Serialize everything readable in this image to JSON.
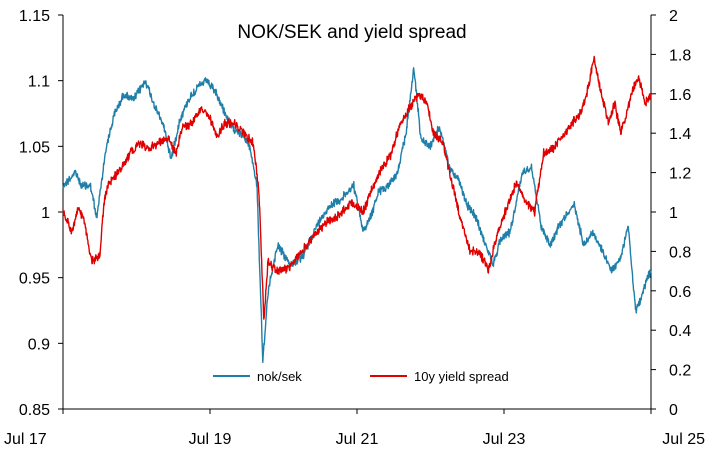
{
  "chart_data": {
    "type": "line",
    "title": "NOK/SEK and yield spread",
    "x_ticks": [
      "Jul 17",
      "Jul 19",
      "Jul 21",
      "Jul 23",
      "Jul 25"
    ],
    "x_range": [
      "2017-07-01",
      "2025-07-01"
    ],
    "y_left": {
      "ylim": [
        0.85,
        1.15
      ],
      "ticks": [
        "0.85",
        "0.9",
        "0.95",
        "1",
        "1.05",
        "1.1",
        "1.15"
      ]
    },
    "y_right": {
      "ylim": [
        0,
        2
      ],
      "ticks": [
        "0",
        "0.2",
        "0.4",
        "0.6",
        "0.8",
        "1",
        "1.2",
        "1.4",
        "1.6",
        "1.8",
        "2"
      ]
    },
    "grid": false,
    "legend_position": "bottom-center",
    "series": [
      {
        "name": "nok/sek",
        "axis": "left",
        "color": "#1f7fa8",
        "points": [
          [
            "2017-07-01",
            1.02
          ],
          [
            "2017-09-01",
            1.03
          ],
          [
            "2017-10-01",
            1.02
          ],
          [
            "2017-11-15",
            1.02
          ],
          [
            "2017-12-15",
            0.995
          ],
          [
            "2018-02-01",
            1.05
          ],
          [
            "2018-03-15",
            1.075
          ],
          [
            "2018-05-01",
            1.09
          ],
          [
            "2018-06-15",
            1.085
          ],
          [
            "2018-08-15",
            1.1
          ],
          [
            "2018-10-01",
            1.08
          ],
          [
            "2018-11-15",
            1.065
          ],
          [
            "2018-12-20",
            1.04
          ],
          [
            "2019-02-01",
            1.07
          ],
          [
            "2019-03-15",
            1.085
          ],
          [
            "2019-05-01",
            1.095
          ],
          [
            "2019-06-15",
            1.1
          ],
          [
            "2019-08-01",
            1.09
          ],
          [
            "2019-09-15",
            1.075
          ],
          [
            "2019-10-15",
            1.065
          ],
          [
            "2019-12-01",
            1.06
          ],
          [
            "2020-01-15",
            1.05
          ],
          [
            "2020-02-20",
            1.02
          ],
          [
            "2020-03-20",
            0.885
          ],
          [
            "2020-04-15",
            0.94
          ],
          [
            "2020-06-01",
            0.975
          ],
          [
            "2020-08-01",
            0.96
          ],
          [
            "2020-10-01",
            0.965
          ],
          [
            "2020-12-15",
            0.99
          ],
          [
            "2021-02-15",
            1.005
          ],
          [
            "2021-04-15",
            1.01
          ],
          [
            "2021-06-15",
            1.02
          ],
          [
            "2021-08-01",
            0.985
          ],
          [
            "2021-09-15",
            1.0
          ],
          [
            "2021-10-15",
            1.015
          ],
          [
            "2021-12-01",
            1.02
          ],
          [
            "2022-01-20",
            1.03
          ],
          [
            "2022-03-01",
            1.06
          ],
          [
            "2022-04-10",
            1.11
          ],
          [
            "2022-05-15",
            1.055
          ],
          [
            "2022-07-01",
            1.05
          ],
          [
            "2022-08-15",
            1.065
          ],
          [
            "2022-10-01",
            1.035
          ],
          [
            "2022-11-15",
            1.025
          ],
          [
            "2023-01-01",
            1.005
          ],
          [
            "2023-02-15",
            0.995
          ],
          [
            "2023-04-01",
            0.975
          ],
          [
            "2023-05-10",
            0.96
          ],
          [
            "2023-06-15",
            0.98
          ],
          [
            "2023-08-01",
            0.985
          ],
          [
            "2023-10-01",
            1.03
          ],
          [
            "2023-11-15",
            1.035
          ],
          [
            "2024-01-01",
            0.99
          ],
          [
            "2024-02-15",
            0.975
          ],
          [
            "2024-04-01",
            0.99
          ],
          [
            "2024-05-15",
            1.0
          ],
          [
            "2024-06-15",
            1.005
          ],
          [
            "2024-08-01",
            0.975
          ],
          [
            "2024-09-15",
            0.985
          ],
          [
            "2024-11-01",
            0.97
          ],
          [
            "2024-12-15",
            0.955
          ],
          [
            "2025-02-01",
            0.965
          ],
          [
            "2025-03-10",
            0.99
          ],
          [
            "2025-04-15",
            0.925
          ],
          [
            "2025-05-15",
            0.935
          ],
          [
            "2025-06-15",
            0.95
          ],
          [
            "2025-07-01",
            0.955
          ]
        ]
      },
      {
        "name": "10y yield spread",
        "axis": "right",
        "color": "#e00000",
        "points": [
          [
            "2017-07-01",
            1.0
          ],
          [
            "2017-08-15",
            0.9
          ],
          [
            "2017-09-15",
            1.02
          ],
          [
            "2017-10-15",
            0.95
          ],
          [
            "2017-11-20",
            0.75
          ],
          [
            "2018-01-01",
            0.78
          ],
          [
            "2018-01-20",
            1.05
          ],
          [
            "2018-02-15",
            1.15
          ],
          [
            "2018-04-01",
            1.2
          ],
          [
            "2018-06-01",
            1.3
          ],
          [
            "2018-07-15",
            1.35
          ],
          [
            "2018-09-01",
            1.32
          ],
          [
            "2018-10-15",
            1.35
          ],
          [
            "2018-12-01",
            1.38
          ],
          [
            "2019-01-15",
            1.3
          ],
          [
            "2019-02-15",
            1.43
          ],
          [
            "2019-04-01",
            1.45
          ],
          [
            "2019-05-15",
            1.52
          ],
          [
            "2019-07-01",
            1.48
          ],
          [
            "2019-08-01",
            1.38
          ],
          [
            "2019-09-15",
            1.45
          ],
          [
            "2019-11-01",
            1.45
          ],
          [
            "2019-12-15",
            1.4
          ],
          [
            "2020-02-01",
            1.35
          ],
          [
            "2020-03-01",
            1.1
          ],
          [
            "2020-03-25",
            0.45
          ],
          [
            "2020-04-15",
            0.75
          ],
          [
            "2020-06-01",
            0.7
          ],
          [
            "2020-08-01",
            0.72
          ],
          [
            "2020-10-01",
            0.8
          ],
          [
            "2020-12-01",
            0.88
          ],
          [
            "2021-02-01",
            0.95
          ],
          [
            "2021-04-01",
            0.98
          ],
          [
            "2021-06-01",
            1.05
          ],
          [
            "2021-08-01",
            1.0
          ],
          [
            "2021-09-15",
            1.12
          ],
          [
            "2021-11-01",
            1.22
          ],
          [
            "2021-12-20",
            1.3
          ],
          [
            "2022-02-01",
            1.45
          ],
          [
            "2022-03-15",
            1.52
          ],
          [
            "2022-05-01",
            1.6
          ],
          [
            "2022-06-15",
            1.55
          ],
          [
            "2022-07-15",
            1.4
          ],
          [
            "2022-09-01",
            1.35
          ],
          [
            "2022-10-15",
            1.15
          ],
          [
            "2022-12-01",
            0.95
          ],
          [
            "2023-01-15",
            0.8
          ],
          [
            "2023-03-01",
            0.8
          ],
          [
            "2023-04-15",
            0.7
          ],
          [
            "2023-06-01",
            0.9
          ],
          [
            "2023-07-15",
            1.02
          ],
          [
            "2023-09-01",
            1.15
          ],
          [
            "2023-10-15",
            1.05
          ],
          [
            "2023-12-01",
            1.0
          ],
          [
            "2024-01-15",
            1.3
          ],
          [
            "2024-03-01",
            1.32
          ],
          [
            "2024-04-15",
            1.38
          ],
          [
            "2024-06-01",
            1.45
          ],
          [
            "2024-07-15",
            1.5
          ],
          [
            "2024-08-15",
            1.6
          ],
          [
            "2024-09-20",
            1.78
          ],
          [
            "2024-11-01",
            1.58
          ],
          [
            "2024-12-01",
            1.45
          ],
          [
            "2025-01-01",
            1.55
          ],
          [
            "2025-02-01",
            1.4
          ],
          [
            "2025-03-01",
            1.5
          ],
          [
            "2025-04-01",
            1.62
          ],
          [
            "2025-05-01",
            1.68
          ],
          [
            "2025-06-01",
            1.55
          ],
          [
            "2025-07-01",
            1.6
          ]
        ]
      }
    ]
  }
}
